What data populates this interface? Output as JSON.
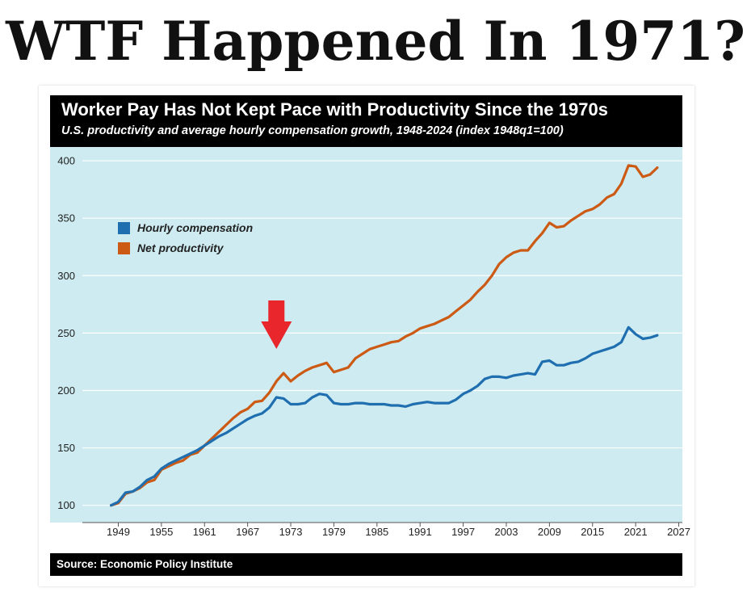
{
  "headline": "WTF Happened In 1971?",
  "source": "Source: Economic Policy Institute",
  "colors": {
    "compensation": "#1f6fb0",
    "productivity": "#cc5a14",
    "plot_background": "#cdebf0",
    "arrow": "#e8262b",
    "header_background": "#000000"
  },
  "chart_data": {
    "type": "line",
    "title": "Worker Pay Has Not Kept Pace with Productivity Since the 1970s",
    "subtitle": "U.S. productivity and average hourly compensation growth, 1948-2024 (index 1948q1=100)",
    "xlabel": "",
    "ylabel": "",
    "xlim": [
      1944,
      2027.5
    ],
    "ylim": [
      85,
      412
    ],
    "x_ticks": [
      1949,
      1955,
      1961,
      1967,
      1973,
      1979,
      1985,
      1991,
      1997,
      2003,
      2009,
      2015,
      2021,
      2027
    ],
    "y_ticks": [
      100,
      150,
      200,
      250,
      300,
      350,
      400
    ],
    "grid": "horizontal",
    "legend_position": "top-left",
    "annotation": {
      "type": "arrow",
      "points_to_year": 1971
    },
    "series": [
      {
        "name": "Hourly compensation",
        "color": "#1f6fb0",
        "x": [
          1948,
          1949,
          1950,
          1951,
          1952,
          1953,
          1954,
          1955,
          1956,
          1957,
          1958,
          1959,
          1960,
          1961,
          1962,
          1963,
          1964,
          1965,
          1966,
          1967,
          1968,
          1969,
          1970,
          1971,
          1972,
          1973,
          1974,
          1975,
          1976,
          1977,
          1978,
          1979,
          1980,
          1981,
          1982,
          1983,
          1984,
          1985,
          1986,
          1987,
          1988,
          1989,
          1990,
          1991,
          1992,
          1993,
          1994,
          1995,
          1996,
          1997,
          1998,
          1999,
          2000,
          2001,
          2002,
          2003,
          2004,
          2005,
          2006,
          2007,
          2008,
          2009,
          2010,
          2011,
          2012,
          2013,
          2014,
          2015,
          2016,
          2017,
          2018,
          2019,
          2020,
          2021,
          2022,
          2023,
          2024
        ],
        "values": [
          100,
          103,
          111,
          112,
          116,
          122,
          125,
          132,
          136,
          139,
          142,
          145,
          148,
          152,
          156,
          160,
          163,
          167,
          171,
          175,
          178,
          180,
          185,
          194,
          193,
          188,
          188,
          189,
          194,
          197,
          196,
          189,
          188,
          188,
          189,
          189,
          188,
          188,
          188,
          187,
          187,
          186,
          188,
          189,
          190,
          189,
          189,
          189,
          192,
          197,
          200,
          204,
          210,
          212,
          212,
          211,
          213,
          214,
          215,
          214,
          225,
          226,
          222,
          222,
          224,
          225,
          228,
          232,
          234,
          236,
          238,
          242,
          255,
          249,
          245,
          246,
          248
        ]
      },
      {
        "name": "Net productivity",
        "color": "#cc5a14",
        "x": [
          1948,
          1949,
          1950,
          1951,
          1952,
          1953,
          1954,
          1955,
          1956,
          1957,
          1958,
          1959,
          1960,
          1961,
          1962,
          1963,
          1964,
          1965,
          1966,
          1967,
          1968,
          1969,
          1970,
          1971,
          1972,
          1973,
          1974,
          1975,
          1976,
          1977,
          1978,
          1979,
          1980,
          1981,
          1982,
          1983,
          1984,
          1985,
          1986,
          1987,
          1988,
          1989,
          1990,
          1991,
          1992,
          1993,
          1994,
          1995,
          1996,
          1997,
          1998,
          1999,
          2000,
          2001,
          2002,
          2003,
          2004,
          2005,
          2006,
          2007,
          2008,
          2009,
          2010,
          2011,
          2012,
          2013,
          2014,
          2015,
          2016,
          2017,
          2018,
          2019,
          2020,
          2021,
          2022,
          2023,
          2024
        ],
        "values": [
          100,
          102,
          110,
          112,
          115,
          120,
          122,
          131,
          134,
          137,
          139,
          144,
          146,
          152,
          158,
          164,
          170,
          176,
          181,
          184,
          190,
          191,
          198,
          208,
          215,
          208,
          213,
          217,
          220,
          222,
          224,
          216,
          218,
          220,
          228,
          232,
          236,
          238,
          240,
          242,
          243,
          247,
          250,
          254,
          256,
          258,
          261,
          264,
          269,
          274,
          279,
          286,
          292,
          300,
          310,
          316,
          320,
          322,
          322,
          330,
          337,
          346,
          342,
          343,
          348,
          352,
          356,
          358,
          362,
          368,
          371,
          380,
          396,
          395,
          386,
          388,
          394
        ]
      }
    ]
  }
}
